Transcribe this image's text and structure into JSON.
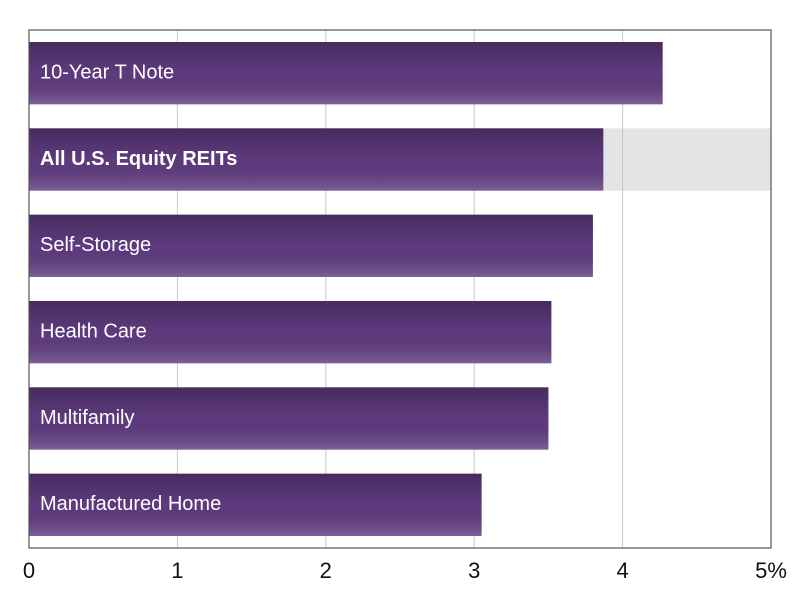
{
  "chart_data": {
    "type": "hbar",
    "categories": [
      "10-Year T Note",
      "All U.S. Equity REITs",
      "Self-Storage",
      "Health Care",
      "Multifamily",
      "Manufactured Home"
    ],
    "values": [
      4.27,
      3.87,
      3.8,
      3.52,
      3.5,
      3.05
    ],
    "color": "#5e3a7e",
    "highlight": 1,
    "xlim": [
      0,
      5
    ],
    "xticks": [
      0,
      1,
      2,
      3,
      4,
      {
        "value": 5,
        "label": "5%"
      }
    ],
    "grid": true
  }
}
